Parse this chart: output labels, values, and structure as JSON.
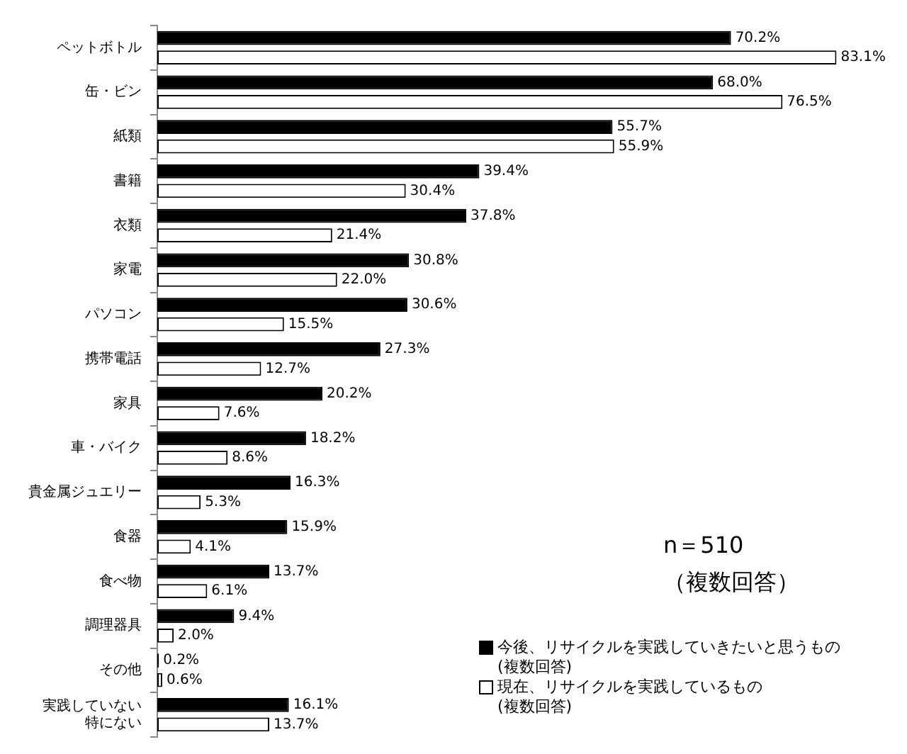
{
  "chart_data": {
    "type": "bar",
    "orientation": "horizontal",
    "legend": "bottom right",
    "categories": [
      "ペットボトル",
      "缶・ビン",
      "紙類",
      "書籍",
      "衣類",
      "家電",
      "パソコン",
      "携帯電話",
      "家具",
      "車・バイク",
      "貴金属ジュエリー",
      "食器",
      "食べ物",
      "調理器具",
      "その他",
      "実践していない特にない"
    ],
    "series": [
      {
        "name": "今後、リサイクルを実践していきたいと思うもの\n(複数回答)",
        "color": "#000000",
        "values": [
          70.2,
          68.0,
          55.7,
          39.4,
          37.8,
          30.8,
          30.6,
          27.3,
          20.2,
          18.2,
          16.3,
          15.9,
          13.7,
          9.4,
          0.2,
          16.1
        ],
        "value_labels": [
          "70.2%",
          "68.0%",
          "55.7%",
          "39.4%",
          "37.8%",
          "30.8%",
          "30.6%",
          "27.3%",
          "20.2%",
          "18.2%",
          "16.3%",
          "15.9%",
          "13.7%",
          "9.4%",
          "0.2%",
          "16.1%"
        ]
      },
      {
        "name": "現在、リサイクルを実践しているもの\n(複数回答)",
        "color": "#ffffff",
        "values": [
          83.1,
          76.5,
          55.9,
          30.4,
          21.4,
          22.0,
          15.5,
          12.7,
          7.6,
          8.6,
          5.3,
          4.1,
          6.1,
          2.0,
          0.6,
          13.7
        ],
        "value_labels": [
          "83.1%",
          "76.5%",
          "55.9%",
          "30.4%",
          "21.4%",
          "22.0%",
          "15.5%",
          "12.7%",
          "7.6%",
          "8.6%",
          "5.3%",
          "4.1%",
          "6.1%",
          "2.0%",
          "0.6%",
          "13.7%"
        ]
      }
    ],
    "annotations": [
      "n＝510",
      "（複数回答）"
    ]
  }
}
